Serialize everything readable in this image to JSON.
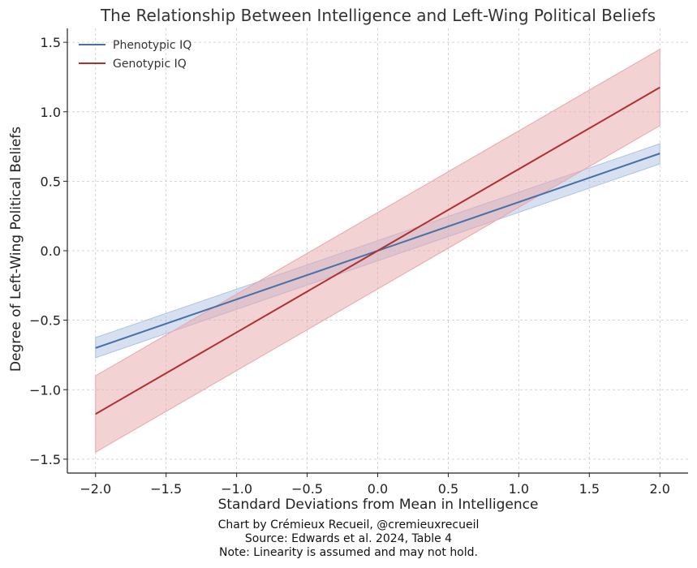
{
  "chart_data": {
    "type": "line",
    "title": "The Relationship Between Intelligence and Left-Wing Political Beliefs",
    "xlabel": "Standard Deviations from Mean in Intelligence",
    "ylabel": "Degree of Left-Wing Political Beliefs",
    "xlim": [
      -2.2,
      2.2
    ],
    "ylim": [
      -1.6,
      1.6
    ],
    "xticks": [
      -2.0,
      -1.5,
      -1.0,
      -0.5,
      0.0,
      0.5,
      1.0,
      1.5,
      2.0
    ],
    "xtick_labels": [
      "−2.0",
      "−1.5",
      "−1.0",
      "−0.5",
      "0.0",
      "0.5",
      "1.0",
      "1.5",
      "2.0"
    ],
    "yticks": [
      -1.5,
      -1.0,
      -0.5,
      0.0,
      0.5,
      1.0,
      1.5
    ],
    "ytick_labels": [
      "−1.5",
      "−1.0",
      "−0.5",
      "0.0",
      "0.5",
      "1.0",
      "1.5"
    ],
    "grid": true,
    "legend_position": "top-left",
    "series": [
      {
        "name": "Phenotypic IQ",
        "color": "#4a6fa5",
        "band_color": "#aec2e3",
        "x": [
          -2.0,
          2.0
        ],
        "y": [
          -0.7,
          0.7
        ],
        "band_lower": [
          -0.77,
          0.625
        ],
        "band_upper": [
          -0.625,
          0.77
        ]
      },
      {
        "name": "Genotypic IQ",
        "color": "#b03030",
        "band_color": "#e8a6aa",
        "x": [
          -2.0,
          2.0
        ],
        "y": [
          -1.175,
          1.175
        ],
        "band_lower": [
          -1.45,
          0.9
        ],
        "band_upper": [
          -0.9,
          1.45
        ]
      }
    ]
  },
  "credits": {
    "line1": "Chart by Crémieux Recueil, @cremieuxrecueil",
    "line2": "Source: Edwards et al. 2024, Table 4",
    "line3": "Note: Linearity is assumed and may not hold."
  }
}
